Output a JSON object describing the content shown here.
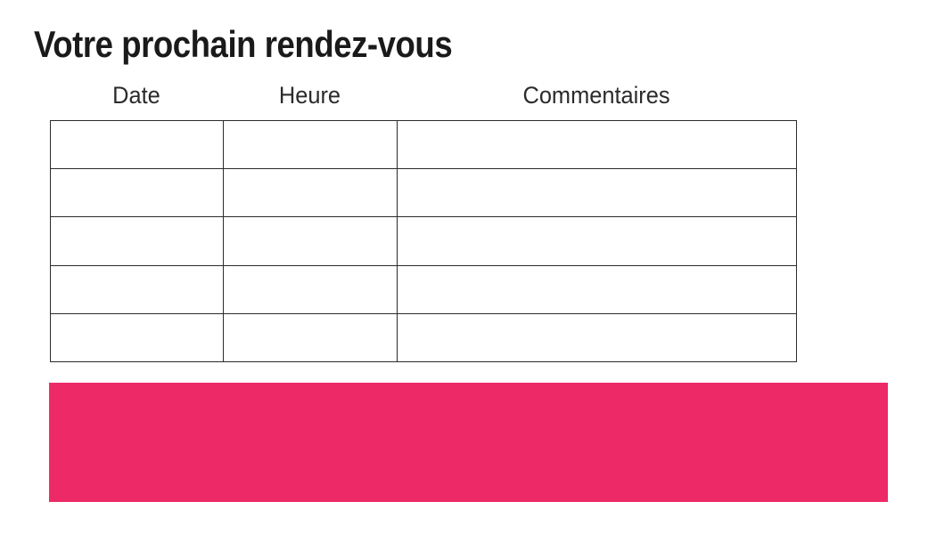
{
  "page": {
    "title": "Votre prochain rendez-vous",
    "background_color": "#ffffff"
  },
  "table": {
    "columns": [
      "Date",
      "Heure",
      "Commentaires"
    ],
    "rows": [
      [
        "",
        "",
        ""
      ],
      [
        "",
        "",
        ""
      ],
      [
        "",
        "",
        ""
      ],
      [
        "",
        "",
        ""
      ],
      [
        "",
        "",
        ""
      ]
    ],
    "border_color": "#2b2b2b"
  },
  "colors": {
    "accent_pink": "#ED2A67",
    "title_text": "#1a1a1a",
    "header_text": "#2b2b2b"
  }
}
